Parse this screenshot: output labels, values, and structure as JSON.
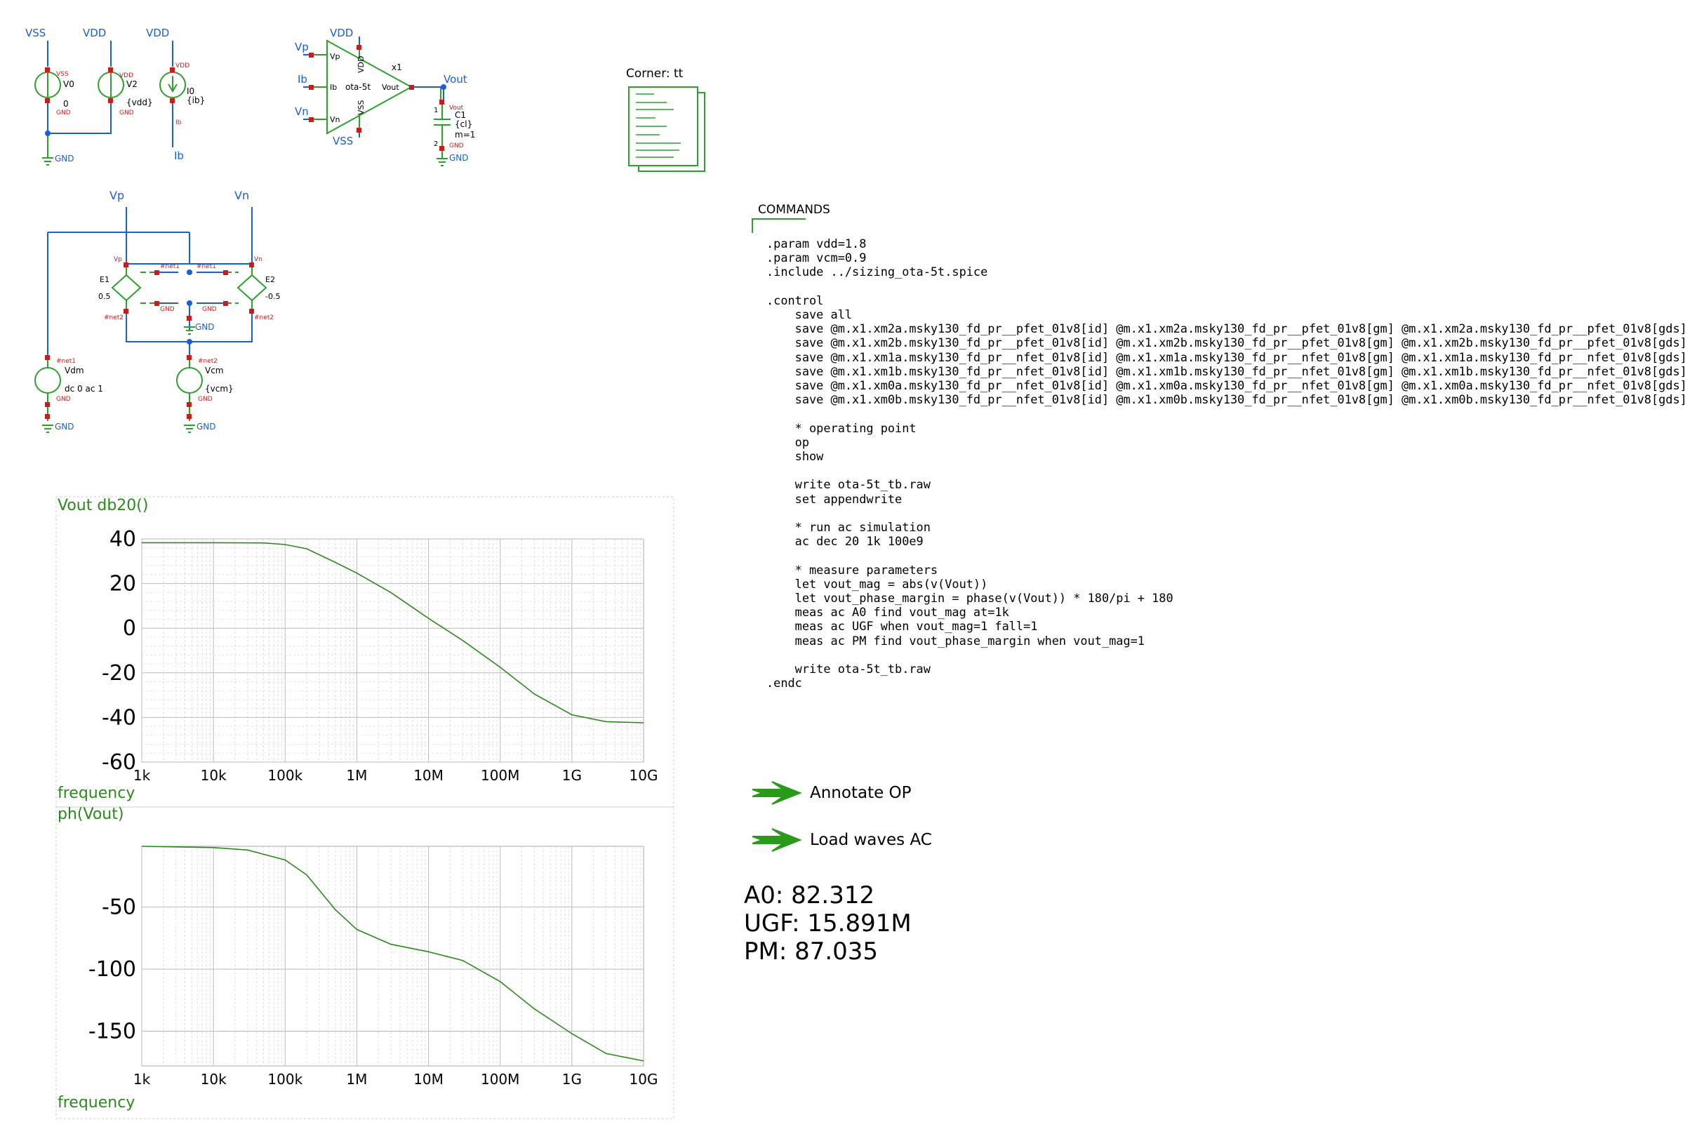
{
  "colors": {
    "wire": "#1a5fd6",
    "component": "#2ea02e",
    "pin": "#c02020",
    "label_red": "#c02020",
    "plot": "#2a8a1a",
    "grid": "#bbbbbb",
    "text": "#000000"
  },
  "sources": {
    "labels": {
      "vss_top": "VSS",
      "vdd_v2": "VDD",
      "vdd_i0": "VDD",
      "gnd_main": "GND",
      "ib_out": "Ib"
    },
    "v0": {
      "name": "V0",
      "value": "0",
      "pin_top": "VSS",
      "pin_bot": "GND"
    },
    "v2": {
      "name": "V2",
      "value": "{vdd}",
      "pin_top": "VDD",
      "pin_bot": "GND"
    },
    "i0": {
      "name": "I0",
      "value": "{ib}",
      "pin_top": "VDD",
      "pin_bot": "Ib"
    }
  },
  "ota": {
    "name": "ota-5t",
    "instance": "x1",
    "in_labels": {
      "vp": "Vp",
      "ib": "Ib",
      "vn": "Vn"
    },
    "top_label": "VDD",
    "bot_label": "VSS",
    "out_label": "Vout",
    "pins": {
      "vp": "Vp",
      "ib": "Ib",
      "vn": "Vn",
      "vdd": "VDD",
      "vss": "VSS",
      "vout": "Vout"
    }
  },
  "cap": {
    "name": "C1",
    "value": "{cl}",
    "mult": "m=1",
    "pin_top": "Vout",
    "pin_bot": "GND",
    "pin1": "1",
    "pin2": "2",
    "gnd": "GND"
  },
  "corner": {
    "label": "Corner: tt"
  },
  "diff": {
    "vp": "Vp",
    "vn": "Vn",
    "e1": {
      "name": "E1",
      "gain": "0.5"
    },
    "e2": {
      "name": "E2",
      "gain": "-0.5"
    },
    "net1": "#net1",
    "net2": "#net2",
    "pins": {
      "vp": "Vp",
      "vn": "Vn",
      "gnd_a": "GND",
      "gnd_b": "GND"
    },
    "gnd_mid": "GND",
    "vdm": {
      "name": "Vdm",
      "value": "dc 0 ac 1",
      "pin_top": "#net1",
      "pin_bot": "GND",
      "gnd": "GND"
    },
    "vcm": {
      "name": "Vcm",
      "value": "{vcm}",
      "pin_top": "#net2",
      "pin_bot": "GND",
      "gnd": "GND"
    }
  },
  "commands": {
    "title": "COMMANDS",
    "text": ".param vdd=1.8\n.param vcm=0.9\n.include ../sizing_ota-5t.spice\n\n.control\n    save all\n    save @m.x1.xm2a.msky130_fd_pr__pfet_01v8[id] @m.x1.xm2a.msky130_fd_pr__pfet_01v8[gm] @m.x1.xm2a.msky130_fd_pr__pfet_01v8[gds]\n    save @m.x1.xm2b.msky130_fd_pr__pfet_01v8[id] @m.x1.xm2b.msky130_fd_pr__pfet_01v8[gm] @m.x1.xm2b.msky130_fd_pr__pfet_01v8[gds]\n    save @m.x1.xm1a.msky130_fd_pr__nfet_01v8[id] @m.x1.xm1a.msky130_fd_pr__nfet_01v8[gm] @m.x1.xm1a.msky130_fd_pr__nfet_01v8[gds]\n    save @m.x1.xm1b.msky130_fd_pr__nfet_01v8[id] @m.x1.xm1b.msky130_fd_pr__nfet_01v8[gm] @m.x1.xm1b.msky130_fd_pr__nfet_01v8[gds]\n    save @m.x1.xm0a.msky130_fd_pr__nfet_01v8[id] @m.x1.xm0a.msky130_fd_pr__nfet_01v8[gm] @m.x1.xm0a.msky130_fd_pr__nfet_01v8[gds]\n    save @m.x1.xm0b.msky130_fd_pr__nfet_01v8[id] @m.x1.xm0b.msky130_fd_pr__nfet_01v8[gm] @m.x1.xm0b.msky130_fd_pr__nfet_01v8[gds]\n\n    * operating point\n    op\n    show\n\n    write ota-5t_tb.raw\n    set appendwrite\n\n    * run ac simulation\n    ac dec 20 1k 100e9\n\n    * measure parameters\n    let vout_mag = abs(v(Vout))\n    let vout_phase_margin = phase(v(Vout)) * 180/pi + 180\n    meas ac A0 find vout_mag at=1k\n    meas ac UGF when vout_mag=1 fall=1\n    meas ac PM find vout_phase_margin when vout_mag=1\n\n    write ota-5t_tb.raw\n.endc"
  },
  "launchers": {
    "annotate": "Annotate OP",
    "load": "Load waves AC"
  },
  "results": {
    "a0": "A0: 82.312",
    "ugf": "UGF: 15.891M",
    "pm": "PM: 87.035"
  },
  "chart_data": [
    {
      "type": "line",
      "title": "Vout db20()",
      "xlabel": "frequency",
      "x_scale": "log",
      "xlim": [
        1000,
        10000000000
      ],
      "ylim": [
        -60,
        40
      ],
      "x_ticks": [
        "1k",
        "10k",
        "100k",
        "1M",
        "10M",
        "100M",
        "1G",
        "10G"
      ],
      "y_ticks": [
        "40",
        "20",
        "0",
        "-20",
        "-40",
        "-60"
      ],
      "grid": true,
      "series": [
        {
          "name": "Vout db20()",
          "x": [
            1000,
            10000,
            50000,
            100000,
            200000,
            500000,
            1000000,
            3000000,
            10000000,
            30000000,
            100000000,
            300000000,
            1000000000,
            3000000000,
            10000000000
          ],
          "y": [
            38.3,
            38.3,
            38.2,
            37.5,
            35.6,
            29.5,
            24.7,
            15.9,
            4.4,
            -5.5,
            -17.5,
            -29.5,
            -38.8,
            -41.9,
            -42.4
          ]
        }
      ]
    },
    {
      "type": "line",
      "title": "ph(Vout)",
      "xlabel": "frequency",
      "x_scale": "log",
      "xlim": [
        1000,
        10000000000
      ],
      "ylim": [
        -178,
        -1
      ],
      "x_ticks": [
        "1k",
        "10k",
        "100k",
        "1M",
        "10M",
        "100M",
        "1G",
        "10G"
      ],
      "y_ticks": [
        "-50",
        "-100",
        "-150"
      ],
      "grid": true,
      "series": [
        {
          "name": "ph(Vout)",
          "x": [
            1000,
            10000,
            30000,
            100000,
            200000,
            500000,
            1000000,
            3000000,
            10000000,
            30000000,
            100000000,
            300000000,
            1000000000,
            3000000000,
            10000000000
          ],
          "y": [
            -1,
            -2,
            -4,
            -12,
            -24,
            -52,
            -68,
            -80,
            -86,
            -93,
            -110,
            -132,
            -152,
            -168,
            -174
          ]
        }
      ]
    }
  ]
}
